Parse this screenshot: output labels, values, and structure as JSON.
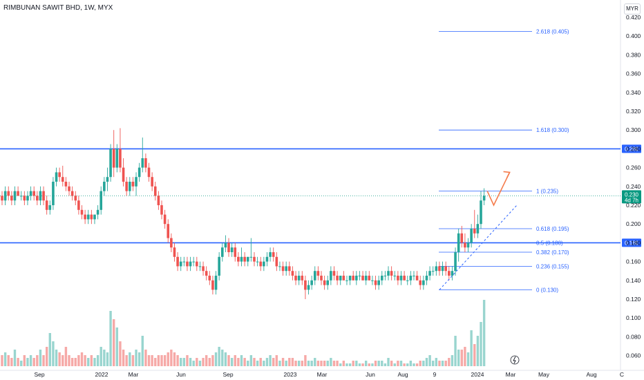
{
  "header": {
    "title": "RIMBUNAN SAWIT BHD, 1W, MYX",
    "currency": "MYR"
  },
  "colors": {
    "up": "#26a69a",
    "down": "#ef5350",
    "up_volume": "#99d5cf",
    "down_volume": "#f6a9a7",
    "level_line": "#2962ff",
    "fib_line": "#2962ff",
    "arrow": "#f57c4c",
    "current_price": "#089981"
  },
  "chart_data": {
    "type": "candlestick",
    "price_axis": {
      "ticks": [
        "0.060",
        "0.080",
        "0.100",
        "0.120",
        "0.140",
        "0.160",
        "0.180",
        "0.200",
        "0.220",
        "0.240",
        "0.260",
        "0.280",
        "0.300",
        "0.320",
        "0.340",
        "0.360",
        "0.380",
        "0.400",
        "0.420"
      ],
      "range": [
        0.048,
        0.424
      ]
    },
    "time_axis": {
      "ticks": [
        "Sep",
        "2022",
        "Mar",
        "Jun",
        "Sep",
        "2023",
        "Mar",
        "Jun",
        "Aug",
        "9",
        "2024",
        "Mar",
        "May",
        "Aug",
        "C"
      ]
    },
    "horizontal_levels": [
      {
        "value": 0.28,
        "label": "0.280"
      },
      {
        "value": 0.18,
        "label": "0.180"
      }
    ],
    "current_price": {
      "value": 0.23,
      "label": "0.230",
      "countdown": "4d 7h"
    },
    "fibonacci": [
      {
        "level": "2.618",
        "price": 0.405,
        "label": "2.618 (0.405)"
      },
      {
        "level": "1.618",
        "price": 0.3,
        "label": "1.618 (0.300)"
      },
      {
        "level": "1",
        "price": 0.235,
        "label": "1 (0.235)"
      },
      {
        "level": "0.618",
        "price": 0.195,
        "label": "0.618 (0.195)"
      },
      {
        "level": "0.5",
        "price": 0.18,
        "label": "0.5 (0.180)"
      },
      {
        "level": "0.382",
        "price": 0.17,
        "label": "0.382 (0.170)"
      },
      {
        "level": "0.236",
        "price": 0.155,
        "label": "0.236 (0.155)"
      },
      {
        "level": "0",
        "price": 0.13,
        "label": "0 (0.130)"
      }
    ],
    "projection_path": [
      {
        "week": 152,
        "price": 0.235
      },
      {
        "week": 154,
        "price": 0.22
      },
      {
        "week": 159,
        "price": 0.255
      }
    ],
    "candles": [
      {
        "o": 0.23,
        "h": 0.235,
        "l": 0.22,
        "c": 0.225,
        "v": 0.2
      },
      {
        "o": 0.225,
        "h": 0.24,
        "l": 0.22,
        "c": 0.235,
        "v": 0.25
      },
      {
        "o": 0.235,
        "h": 0.24,
        "l": 0.225,
        "c": 0.23,
        "v": 0.2
      },
      {
        "o": 0.23,
        "h": 0.235,
        "l": 0.22,
        "c": 0.225,
        "v": 0.15
      },
      {
        "o": 0.225,
        "h": 0.24,
        "l": 0.22,
        "c": 0.235,
        "v": 0.3
      },
      {
        "o": 0.235,
        "h": 0.24,
        "l": 0.23,
        "c": 0.23,
        "v": 0.15
      },
      {
        "o": 0.23,
        "h": 0.235,
        "l": 0.225,
        "c": 0.23,
        "v": 0.1
      },
      {
        "o": 0.23,
        "h": 0.235,
        "l": 0.22,
        "c": 0.225,
        "v": 0.2
      },
      {
        "o": 0.225,
        "h": 0.235,
        "l": 0.22,
        "c": 0.23,
        "v": 0.15
      },
      {
        "o": 0.23,
        "h": 0.24,
        "l": 0.225,
        "c": 0.235,
        "v": 0.2
      },
      {
        "o": 0.235,
        "h": 0.24,
        "l": 0.225,
        "c": 0.23,
        "v": 0.15
      },
      {
        "o": 0.23,
        "h": 0.235,
        "l": 0.22,
        "c": 0.225,
        "v": 0.2
      },
      {
        "o": 0.225,
        "h": 0.24,
        "l": 0.22,
        "c": 0.235,
        "v": 0.3
      },
      {
        "o": 0.235,
        "h": 0.24,
        "l": 0.22,
        "c": 0.225,
        "v": 0.2
      },
      {
        "o": 0.225,
        "h": 0.23,
        "l": 0.21,
        "c": 0.215,
        "v": 0.35
      },
      {
        "o": 0.215,
        "h": 0.225,
        "l": 0.21,
        "c": 0.22,
        "v": 0.6
      },
      {
        "o": 0.22,
        "h": 0.25,
        "l": 0.215,
        "c": 0.245,
        "v": 0.45
      },
      {
        "o": 0.245,
        "h": 0.26,
        "l": 0.24,
        "c": 0.255,
        "v": 0.3
      },
      {
        "o": 0.255,
        "h": 0.26,
        "l": 0.245,
        "c": 0.25,
        "v": 0.25
      },
      {
        "o": 0.25,
        "h": 0.262,
        "l": 0.24,
        "c": 0.245,
        "v": 0.2
      },
      {
        "o": 0.245,
        "h": 0.25,
        "l": 0.235,
        "c": 0.24,
        "v": 0.35
      },
      {
        "o": 0.24,
        "h": 0.245,
        "l": 0.23,
        "c": 0.235,
        "v": 0.2
      },
      {
        "o": 0.235,
        "h": 0.24,
        "l": 0.225,
        "c": 0.23,
        "v": 0.15
      },
      {
        "o": 0.23,
        "h": 0.235,
        "l": 0.22,
        "c": 0.225,
        "v": 0.15
      },
      {
        "o": 0.225,
        "h": 0.23,
        "l": 0.21,
        "c": 0.215,
        "v": 0.2
      },
      {
        "o": 0.215,
        "h": 0.22,
        "l": 0.205,
        "c": 0.21,
        "v": 0.25
      },
      {
        "o": 0.21,
        "h": 0.215,
        "l": 0.2,
        "c": 0.205,
        "v": 0.2
      },
      {
        "o": 0.205,
        "h": 0.215,
        "l": 0.2,
        "c": 0.21,
        "v": 0.15
      },
      {
        "o": 0.21,
        "h": 0.215,
        "l": 0.2,
        "c": 0.205,
        "v": 0.2
      },
      {
        "o": 0.205,
        "h": 0.21,
        "l": 0.2,
        "c": 0.21,
        "v": 0.15
      },
      {
        "o": 0.21,
        "h": 0.22,
        "l": 0.205,
        "c": 0.215,
        "v": 0.2
      },
      {
        "o": 0.215,
        "h": 0.24,
        "l": 0.21,
        "c": 0.235,
        "v": 0.35
      },
      {
        "o": 0.235,
        "h": 0.25,
        "l": 0.23,
        "c": 0.245,
        "v": 0.3
      },
      {
        "o": 0.245,
        "h": 0.26,
        "l": 0.235,
        "c": 0.25,
        "v": 0.25
      },
      {
        "o": 0.25,
        "h": 0.285,
        "l": 0.245,
        "c": 0.28,
        "v": 1.0
      },
      {
        "o": 0.28,
        "h": 0.3,
        "l": 0.25,
        "c": 0.26,
        "v": 0.85
      },
      {
        "o": 0.26,
        "h": 0.285,
        "l": 0.255,
        "c": 0.28,
        "v": 0.7
      },
      {
        "o": 0.28,
        "h": 0.302,
        "l": 0.255,
        "c": 0.26,
        "v": 0.45
      },
      {
        "o": 0.26,
        "h": 0.27,
        "l": 0.24,
        "c": 0.245,
        "v": 0.3
      },
      {
        "o": 0.245,
        "h": 0.25,
        "l": 0.23,
        "c": 0.235,
        "v": 0.2
      },
      {
        "o": 0.235,
        "h": 0.25,
        "l": 0.23,
        "c": 0.245,
        "v": 0.25
      },
      {
        "o": 0.245,
        "h": 0.25,
        "l": 0.235,
        "c": 0.24,
        "v": 0.2
      },
      {
        "o": 0.24,
        "h": 0.255,
        "l": 0.23,
        "c": 0.25,
        "v": 0.3
      },
      {
        "o": 0.25,
        "h": 0.265,
        "l": 0.245,
        "c": 0.26,
        "v": 0.25
      },
      {
        "o": 0.26,
        "h": 0.292,
        "l": 0.255,
        "c": 0.27,
        "v": 0.55
      },
      {
        "o": 0.27,
        "h": 0.275,
        "l": 0.255,
        "c": 0.26,
        "v": 0.3
      },
      {
        "o": 0.26,
        "h": 0.265,
        "l": 0.245,
        "c": 0.25,
        "v": 0.2
      },
      {
        "o": 0.25,
        "h": 0.255,
        "l": 0.235,
        "c": 0.24,
        "v": 0.2
      },
      {
        "o": 0.24,
        "h": 0.245,
        "l": 0.225,
        "c": 0.23,
        "v": 0.15
      },
      {
        "o": 0.23,
        "h": 0.235,
        "l": 0.215,
        "c": 0.22,
        "v": 0.2
      },
      {
        "o": 0.22,
        "h": 0.225,
        "l": 0.205,
        "c": 0.21,
        "v": 0.2
      },
      {
        "o": 0.21,
        "h": 0.215,
        "l": 0.195,
        "c": 0.2,
        "v": 0.2
      },
      {
        "o": 0.2,
        "h": 0.205,
        "l": 0.18,
        "c": 0.185,
        "v": 0.25
      },
      {
        "o": 0.185,
        "h": 0.19,
        "l": 0.17,
        "c": 0.175,
        "v": 0.3
      },
      {
        "o": 0.175,
        "h": 0.18,
        "l": 0.16,
        "c": 0.165,
        "v": 0.25
      },
      {
        "o": 0.165,
        "h": 0.17,
        "l": 0.15,
        "c": 0.155,
        "v": 0.2
      },
      {
        "o": 0.155,
        "h": 0.165,
        "l": 0.15,
        "c": 0.16,
        "v": 0.15
      },
      {
        "o": 0.16,
        "h": 0.165,
        "l": 0.155,
        "c": 0.16,
        "v": 0.15
      },
      {
        "o": 0.16,
        "h": 0.165,
        "l": 0.15,
        "c": 0.155,
        "v": 0.2
      },
      {
        "o": 0.155,
        "h": 0.165,
        "l": 0.15,
        "c": 0.16,
        "v": 0.15
      },
      {
        "o": 0.16,
        "h": 0.165,
        "l": 0.155,
        "c": 0.16,
        "v": 0.1
      },
      {
        "o": 0.16,
        "h": 0.165,
        "l": 0.15,
        "c": 0.155,
        "v": 0.15
      },
      {
        "o": 0.155,
        "h": 0.16,
        "l": 0.15,
        "c": 0.155,
        "v": 0.1
      },
      {
        "o": 0.155,
        "h": 0.16,
        "l": 0.145,
        "c": 0.15,
        "v": 0.15
      },
      {
        "o": 0.15,
        "h": 0.155,
        "l": 0.14,
        "c": 0.145,
        "v": 0.2
      },
      {
        "o": 0.145,
        "h": 0.15,
        "l": 0.135,
        "c": 0.14,
        "v": 0.15
      },
      {
        "o": 0.14,
        "h": 0.145,
        "l": 0.125,
        "c": 0.13,
        "v": 0.2
      },
      {
        "o": 0.13,
        "h": 0.15,
        "l": 0.125,
        "c": 0.145,
        "v": 0.25
      },
      {
        "o": 0.145,
        "h": 0.17,
        "l": 0.14,
        "c": 0.165,
        "v": 0.35
      },
      {
        "o": 0.165,
        "h": 0.18,
        "l": 0.16,
        "c": 0.175,
        "v": 0.3
      },
      {
        "o": 0.175,
        "h": 0.188,
        "l": 0.17,
        "c": 0.18,
        "v": 0.25
      },
      {
        "o": 0.18,
        "h": 0.185,
        "l": 0.165,
        "c": 0.17,
        "v": 0.2
      },
      {
        "o": 0.17,
        "h": 0.18,
        "l": 0.165,
        "c": 0.175,
        "v": 0.15
      },
      {
        "o": 0.175,
        "h": 0.18,
        "l": 0.16,
        "c": 0.165,
        "v": 0.2
      },
      {
        "o": 0.165,
        "h": 0.17,
        "l": 0.155,
        "c": 0.16,
        "v": 0.15
      },
      {
        "o": 0.16,
        "h": 0.175,
        "l": 0.155,
        "c": 0.165,
        "v": 0.2
      },
      {
        "o": 0.165,
        "h": 0.17,
        "l": 0.155,
        "c": 0.16,
        "v": 0.15
      },
      {
        "o": 0.16,
        "h": 0.165,
        "l": 0.155,
        "c": 0.165,
        "v": 0.1
      },
      {
        "o": 0.165,
        "h": 0.185,
        "l": 0.16,
        "c": 0.165,
        "v": 0.2
      },
      {
        "o": 0.165,
        "h": 0.17,
        "l": 0.155,
        "c": 0.16,
        "v": 0.15
      },
      {
        "o": 0.16,
        "h": 0.165,
        "l": 0.155,
        "c": 0.16,
        "v": 0.1
      },
      {
        "o": 0.16,
        "h": 0.165,
        "l": 0.15,
        "c": 0.155,
        "v": 0.15
      },
      {
        "o": 0.155,
        "h": 0.165,
        "l": 0.15,
        "c": 0.16,
        "v": 0.1
      },
      {
        "o": 0.16,
        "h": 0.17,
        "l": 0.155,
        "c": 0.165,
        "v": 0.15
      },
      {
        "o": 0.165,
        "h": 0.175,
        "l": 0.16,
        "c": 0.17,
        "v": 0.2
      },
      {
        "o": 0.17,
        "h": 0.175,
        "l": 0.16,
        "c": 0.165,
        "v": 0.15
      },
      {
        "o": 0.165,
        "h": 0.17,
        "l": 0.15,
        "c": 0.155,
        "v": 0.2
      },
      {
        "o": 0.155,
        "h": 0.16,
        "l": 0.15,
        "c": 0.155,
        "v": 0.1
      },
      {
        "o": 0.155,
        "h": 0.16,
        "l": 0.145,
        "c": 0.15,
        "v": 0.15
      },
      {
        "o": 0.15,
        "h": 0.16,
        "l": 0.145,
        "c": 0.155,
        "v": 0.1
      },
      {
        "o": 0.155,
        "h": 0.16,
        "l": 0.145,
        "c": 0.15,
        "v": 0.15
      },
      {
        "o": 0.15,
        "h": 0.155,
        "l": 0.14,
        "c": 0.145,
        "v": 0.15
      },
      {
        "o": 0.145,
        "h": 0.15,
        "l": 0.135,
        "c": 0.14,
        "v": 0.1
      },
      {
        "o": 0.14,
        "h": 0.15,
        "l": 0.135,
        "c": 0.145,
        "v": 0.1
      },
      {
        "o": 0.145,
        "h": 0.15,
        "l": 0.135,
        "c": 0.14,
        "v": 0.1
      },
      {
        "o": 0.14,
        "h": 0.145,
        "l": 0.12,
        "c": 0.13,
        "v": 0.2
      },
      {
        "o": 0.13,
        "h": 0.14,
        "l": 0.125,
        "c": 0.135,
        "v": 0.1
      },
      {
        "o": 0.135,
        "h": 0.145,
        "l": 0.13,
        "c": 0.14,
        "v": 0.1
      },
      {
        "o": 0.14,
        "h": 0.155,
        "l": 0.135,
        "c": 0.15,
        "v": 0.15
      },
      {
        "o": 0.15,
        "h": 0.155,
        "l": 0.14,
        "c": 0.145,
        "v": 0.1
      },
      {
        "o": 0.145,
        "h": 0.15,
        "l": 0.135,
        "c": 0.14,
        "v": 0.1
      },
      {
        "o": 0.14,
        "h": 0.145,
        "l": 0.13,
        "c": 0.135,
        "v": 0.1
      },
      {
        "o": 0.135,
        "h": 0.145,
        "l": 0.13,
        "c": 0.14,
        "v": 0.1
      },
      {
        "o": 0.14,
        "h": 0.155,
        "l": 0.135,
        "c": 0.15,
        "v": 0.15
      },
      {
        "o": 0.15,
        "h": 0.155,
        "l": 0.14,
        "c": 0.145,
        "v": 0.1
      },
      {
        "o": 0.145,
        "h": 0.15,
        "l": 0.135,
        "c": 0.14,
        "v": 0.1
      },
      {
        "o": 0.14,
        "h": 0.145,
        "l": 0.135,
        "c": 0.145,
        "v": 0.05
      },
      {
        "o": 0.145,
        "h": 0.15,
        "l": 0.14,
        "c": 0.14,
        "v": 0.1
      },
      {
        "o": 0.14,
        "h": 0.145,
        "l": 0.135,
        "c": 0.14,
        "v": 0.05
      },
      {
        "o": 0.14,
        "h": 0.145,
        "l": 0.135,
        "c": 0.145,
        "v": 0.05
      },
      {
        "o": 0.145,
        "h": 0.15,
        "l": 0.14,
        "c": 0.14,
        "v": 0.1
      },
      {
        "o": 0.14,
        "h": 0.15,
        "l": 0.135,
        "c": 0.145,
        "v": 0.1
      },
      {
        "o": 0.145,
        "h": 0.15,
        "l": 0.14,
        "c": 0.145,
        "v": 0.05
      },
      {
        "o": 0.145,
        "h": 0.15,
        "l": 0.14,
        "c": 0.14,
        "v": 0.05
      },
      {
        "o": 0.14,
        "h": 0.15,
        "l": 0.135,
        "c": 0.145,
        "v": 0.1
      },
      {
        "o": 0.145,
        "h": 0.15,
        "l": 0.14,
        "c": 0.14,
        "v": 0.05
      },
      {
        "o": 0.14,
        "h": 0.145,
        "l": 0.135,
        "c": 0.14,
        "v": 0.05
      },
      {
        "o": 0.14,
        "h": 0.145,
        "l": 0.13,
        "c": 0.135,
        "v": 0.1
      },
      {
        "o": 0.135,
        "h": 0.145,
        "l": 0.13,
        "c": 0.14,
        "v": 0.1
      },
      {
        "o": 0.14,
        "h": 0.15,
        "l": 0.135,
        "c": 0.145,
        "v": 0.1
      },
      {
        "o": 0.145,
        "h": 0.15,
        "l": 0.14,
        "c": 0.145,
        "v": 0.05
      },
      {
        "o": 0.145,
        "h": 0.155,
        "l": 0.14,
        "c": 0.15,
        "v": 0.15
      },
      {
        "o": 0.15,
        "h": 0.155,
        "l": 0.14,
        "c": 0.145,
        "v": 0.1
      },
      {
        "o": 0.145,
        "h": 0.15,
        "l": 0.14,
        "c": 0.145,
        "v": 0.05
      },
      {
        "o": 0.145,
        "h": 0.15,
        "l": 0.135,
        "c": 0.14,
        "v": 0.1
      },
      {
        "o": 0.14,
        "h": 0.15,
        "l": 0.135,
        "c": 0.145,
        "v": 0.1
      },
      {
        "o": 0.145,
        "h": 0.15,
        "l": 0.14,
        "c": 0.14,
        "v": 0.05
      },
      {
        "o": 0.14,
        "h": 0.145,
        "l": 0.135,
        "c": 0.14,
        "v": 0.05
      },
      {
        "o": 0.14,
        "h": 0.15,
        "l": 0.135,
        "c": 0.145,
        "v": 0.1
      },
      {
        "o": 0.145,
        "h": 0.15,
        "l": 0.14,
        "c": 0.145,
        "v": 0.05
      },
      {
        "o": 0.145,
        "h": 0.15,
        "l": 0.14,
        "c": 0.14,
        "v": 0.05
      },
      {
        "o": 0.14,
        "h": 0.145,
        "l": 0.13,
        "c": 0.135,
        "v": 0.1
      },
      {
        "o": 0.135,
        "h": 0.145,
        "l": 0.13,
        "c": 0.14,
        "v": 0.1
      },
      {
        "o": 0.14,
        "h": 0.15,
        "l": 0.135,
        "c": 0.145,
        "v": 0.15
      },
      {
        "o": 0.145,
        "h": 0.155,
        "l": 0.14,
        "c": 0.15,
        "v": 0.2
      },
      {
        "o": 0.15,
        "h": 0.155,
        "l": 0.145,
        "c": 0.15,
        "v": 0.1
      },
      {
        "o": 0.15,
        "h": 0.16,
        "l": 0.145,
        "c": 0.155,
        "v": 0.15
      },
      {
        "o": 0.155,
        "h": 0.16,
        "l": 0.145,
        "c": 0.15,
        "v": 0.1
      },
      {
        "o": 0.15,
        "h": 0.16,
        "l": 0.145,
        "c": 0.155,
        "v": 0.1
      },
      {
        "o": 0.155,
        "h": 0.16,
        "l": 0.145,
        "c": 0.15,
        "v": 0.1
      },
      {
        "o": 0.15,
        "h": 0.155,
        "l": 0.14,
        "c": 0.145,
        "v": 0.15
      },
      {
        "o": 0.145,
        "h": 0.155,
        "l": 0.14,
        "c": 0.15,
        "v": 0.2
      },
      {
        "o": 0.15,
        "h": 0.175,
        "l": 0.145,
        "c": 0.17,
        "v": 0.55
      },
      {
        "o": 0.17,
        "h": 0.195,
        "l": 0.16,
        "c": 0.19,
        "v": 0.3
      },
      {
        "o": 0.19,
        "h": 0.198,
        "l": 0.175,
        "c": 0.18,
        "v": 0.3
      },
      {
        "o": 0.18,
        "h": 0.19,
        "l": 0.17,
        "c": 0.175,
        "v": 0.35
      },
      {
        "o": 0.175,
        "h": 0.185,
        "l": 0.17,
        "c": 0.18,
        "v": 0.25
      },
      {
        "o": 0.18,
        "h": 0.2,
        "l": 0.175,
        "c": 0.195,
        "v": 0.65
      },
      {
        "o": 0.195,
        "h": 0.215,
        "l": 0.185,
        "c": 0.19,
        "v": 0.4
      },
      {
        "o": 0.19,
        "h": 0.21,
        "l": 0.185,
        "c": 0.2,
        "v": 0.55
      },
      {
        "o": 0.2,
        "h": 0.235,
        "l": 0.195,
        "c": 0.225,
        "v": 0.8
      },
      {
        "o": 0.225,
        "h": 0.238,
        "l": 0.22,
        "c": 0.23,
        "v": 1.2
      }
    ],
    "n_weeks_total": 195
  }
}
